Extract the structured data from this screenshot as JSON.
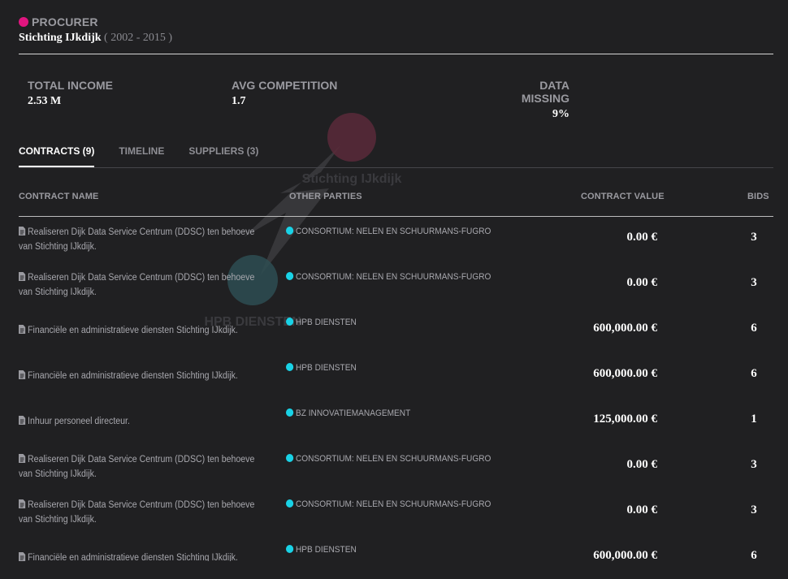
{
  "header": {
    "kind_label": "PROCURER",
    "name": "Stichting IJkdijk",
    "years": "( 2002 - 2015 )",
    "kind_color": "#e0157f"
  },
  "stats": {
    "total_income_label": "TOTAL INCOME",
    "total_income_value": "2.53 M",
    "avg_competition_label": "AVG COMPETITION",
    "avg_competition_value": "1.7",
    "data_missing_label": "DATA MISSING",
    "data_missing_value": "9%"
  },
  "tabs": [
    {
      "label": "CONTRACTS (9)",
      "active": true
    },
    {
      "label": "TIMELINE",
      "active": false
    },
    {
      "label": "SUPPLIERS (3)",
      "active": false
    }
  ],
  "graph": {
    "procurer_label": "Stichting IJkdijk",
    "supplier_label": "HPB DIENSTEN",
    "procurer_color": "#5a2a3a",
    "supplier_color": "#2e4e52"
  },
  "table": {
    "headers": {
      "name": "CONTRACT NAME",
      "parties": "OTHER PARTIES",
      "value": "CONTRACT VALUE",
      "bids": "BIDS"
    },
    "party_dot_color": "#19d2e6",
    "rows": [
      {
        "name": "Realiseren Dijk Data Service Centrum (DDSC) ten behoeve van Stichting IJkdijk.",
        "party": "CONSORTIUM: NELEN EN SCHUURMANS-FUGRO",
        "value": "0.00 €",
        "bids": "3"
      },
      {
        "name": "Realiseren Dijk Data Service Centrum (DDSC) ten behoeve van Stichting IJkdijk.",
        "party": "CONSORTIUM: NELEN EN SCHUURMANS-FUGRO",
        "value": "0.00 €",
        "bids": "3"
      },
      {
        "name": "Financiële en administratieve diensten Stichting IJkdijk.",
        "party": "HPB DIENSTEN",
        "value": "600,000.00 €",
        "bids": "6"
      },
      {
        "name": "Financiële en administratieve diensten Stichting IJkdijk.",
        "party": "HPB DIENSTEN",
        "value": "600,000.00 €",
        "bids": "6"
      },
      {
        "name": "Inhuur personeel directeur.",
        "party": "BZ INNOVATIEMANAGEMENT",
        "value": "125,000.00 €",
        "bids": "1"
      },
      {
        "name": "Realiseren Dijk Data Service Centrum (DDSC) ten behoeve van Stichting IJkdijk.",
        "party": "CONSORTIUM: NELEN EN SCHUURMANS-FUGRO",
        "value": "0.00 €",
        "bids": "3"
      },
      {
        "name": "Realiseren Dijk Data Service Centrum (DDSC) ten behoeve van Stichting IJkdijk.",
        "party": "CONSORTIUM: NELEN EN SCHUURMANS-FUGRO",
        "value": "0.00 €",
        "bids": "3"
      },
      {
        "name": "Financiële en administratieve diensten Stichting IJkdijk.",
        "party": "HPB DIENSTEN",
        "value": "600,000.00 €",
        "bids": "6"
      }
    ]
  }
}
